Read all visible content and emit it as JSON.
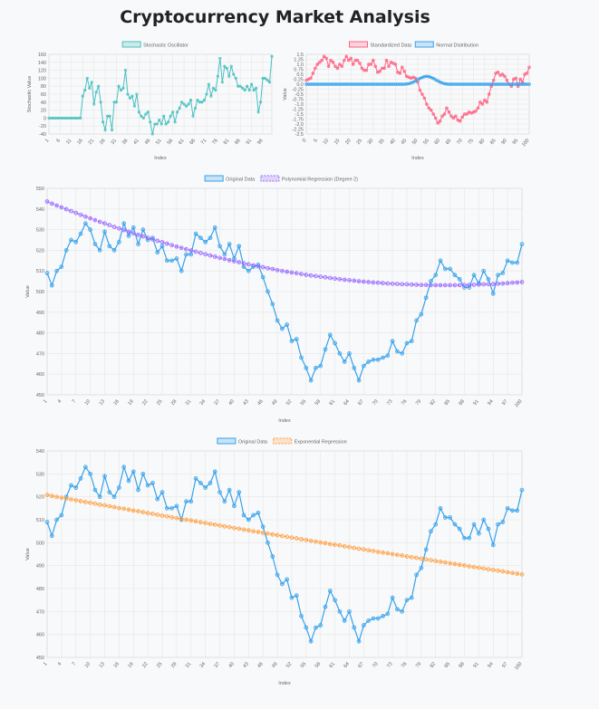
{
  "page": {
    "title": "Cryptocurrency Market Analysis"
  },
  "colors": {
    "teal": "#4bc0c0",
    "pink": "#ff6384",
    "blue": "#36a2eb",
    "purple": "#9966ff",
    "orange": "#ff9f40",
    "grid": "#e6e6e6"
  },
  "chart_data": [
    {
      "id": "stochastic",
      "type": "line",
      "title": "",
      "legend": "top-center",
      "xlabel": "Index",
      "ylabel": "Stochastic Value",
      "x_start": 1,
      "x_tick_step": 5,
      "ylim": [
        -40,
        160
      ],
      "y_step": 20,
      "series": [
        {
          "name": "Stochastic Oscillator",
          "color": "#4bc0c0",
          "values": [
            0,
            0,
            0,
            0,
            0,
            0,
            0,
            0,
            0,
            0,
            0,
            0,
            0,
            0,
            0,
            55,
            70,
            100,
            75,
            90,
            35,
            65,
            80,
            40,
            -10,
            -30,
            5,
            5,
            -30,
            40,
            40,
            80,
            70,
            75,
            120,
            60,
            50,
            55,
            30,
            60,
            15,
            5,
            0,
            10,
            15,
            -10,
            -40,
            -15,
            -15,
            -5,
            -15,
            5,
            -15,
            -10,
            5,
            15,
            -10,
            15,
            25,
            40,
            35,
            30,
            35,
            45,
            5,
            25,
            45,
            40,
            40,
            45,
            60,
            85,
            55,
            75,
            70,
            105,
            150,
            90,
            130,
            125,
            105,
            130,
            110,
            100,
            80,
            80,
            75,
            70,
            80,
            70,
            85,
            70,
            75,
            15,
            40,
            100,
            100,
            95,
            90,
            155
          ]
        }
      ]
    },
    {
      "id": "standardized",
      "type": "line",
      "title": "",
      "legend": "top-center",
      "xlabel": "Index",
      "ylabel": "Value",
      "x_start": 0,
      "x_tick_step": 5,
      "ylim": [
        -2.5,
        1.5
      ],
      "y_step": 0.25,
      "series": [
        {
          "name": "Standardized Data",
          "color": "#ff6384",
          "values": [
            0.2,
            0.25,
            0.3,
            0.55,
            0.8,
            1.0,
            1.1,
            1.2,
            1.4,
            1.3,
            0.9,
            1.2,
            1.1,
            0.9,
            0.8,
            1.0,
            0.9,
            1.2,
            1.4,
            1.2,
            1.3,
            1.0,
            1.2,
            1.2,
            1.05,
            0.8,
            0.7,
            0.7,
            1.0,
            1.0,
            1.2,
            0.9,
            0.6,
            0.65,
            0.8,
            0.8,
            1.2,
            0.9,
            1.1,
            1.05,
            1.0,
            0.6,
            0.55,
            0.85,
            0.65,
            0.4,
            0.35,
            0.3,
            0.35,
            0.3,
            0.1,
            -0.3,
            -0.5,
            -0.7,
            -1.0,
            -1.2,
            -1.3,
            -1.5,
            -1.7,
            -1.95,
            -1.85,
            -1.6,
            -1.5,
            -1.2,
            -1.4,
            -1.6,
            -1.7,
            -1.6,
            -1.8,
            -1.85,
            -1.65,
            -1.5,
            -1.5,
            -1.4,
            -1.45,
            -1.4,
            -1.35,
            -1.2,
            -0.9,
            -1.0,
            -0.8,
            -0.9,
            -0.5,
            -0.1,
            0.2,
            0.55,
            0.6,
            0.45,
            0.5,
            0.4,
            0.2,
            0.0,
            -0.1,
            0.25,
            0.3,
            -0.1,
            0.25,
            0.1,
            0.5,
            0.55,
            0.85
          ]
        },
        {
          "name": "Normal Distribution",
          "color": "#36a2eb",
          "values": [
            0,
            0,
            0,
            0,
            0,
            0,
            0,
            0,
            0,
            0,
            0,
            0,
            0,
            0,
            0,
            0,
            0,
            0,
            0,
            0,
            0,
            0,
            0,
            0,
            0,
            0,
            0,
            0,
            0,
            0,
            0,
            0,
            0,
            0,
            0,
            0,
            0,
            0,
            0,
            0,
            0,
            0,
            0,
            0,
            0,
            0.01,
            0.03,
            0.06,
            0.11,
            0.17,
            0.23,
            0.29,
            0.34,
            0.38,
            0.4,
            0.38,
            0.34,
            0.29,
            0.23,
            0.17,
            0.11,
            0.06,
            0.03,
            0.01,
            0,
            0,
            0,
            0,
            0,
            0,
            0,
            0,
            0,
            0,
            0,
            0,
            0,
            0,
            0,
            0,
            0,
            0,
            0,
            0,
            0,
            0,
            0,
            0,
            0,
            0,
            0,
            0,
            0,
            0,
            0,
            0,
            0,
            0,
            0,
            0,
            0
          ]
        }
      ]
    },
    {
      "id": "poly",
      "type": "line",
      "title": "",
      "legend": "top-center",
      "xlabel": "Index",
      "ylabel": "Value",
      "x_start": 1,
      "x_tick_step": 3,
      "x_tick_last": true,
      "ylim": [
        450,
        550
      ],
      "y_step": 10,
      "series": [
        {
          "name": "Original Data",
          "color": "#36a2eb",
          "values": [
            509,
            503,
            510,
            512,
            520,
            525,
            524,
            528,
            533,
            530,
            523,
            520,
            529,
            522,
            520,
            524,
            533,
            527,
            531,
            523,
            530,
            525,
            526,
            519,
            522,
            515,
            515,
            516,
            510,
            518,
            518,
            528,
            526,
            524,
            526,
            531,
            522,
            518,
            523,
            516,
            522,
            512,
            510,
            512,
            513,
            507,
            500,
            494,
            486,
            482,
            484,
            476,
            477,
            468,
            463,
            457,
            463,
            464,
            472,
            479,
            475,
            470,
            466,
            470,
            463,
            457,
            464,
            466,
            467,
            467,
            468,
            469,
            476,
            471,
            470,
            475,
            476,
            486,
            489,
            497,
            505,
            508,
            515,
            511,
            511,
            508,
            506,
            502,
            502,
            508,
            504,
            510,
            506,
            499,
            508,
            509,
            515,
            514,
            514,
            523
          ]
        },
        {
          "name": "Polynomial Regression (Degree 2)",
          "color": "#9966ff",
          "dashed": true,
          "values": [
            543.6,
            542.6,
            541.7,
            540.8,
            539.9,
            539.0,
            538.1,
            537.2,
            536.3,
            535.5,
            534.6,
            533.8,
            533.0,
            532.2,
            531.3,
            530.6,
            529.8,
            529.0,
            528.2,
            527.5,
            526.7,
            526.0,
            525.3,
            524.6,
            523.9,
            523.2,
            522.5,
            521.8,
            521.2,
            520.5,
            519.9,
            519.3,
            518.7,
            518.1,
            517.5,
            516.9,
            516.3,
            515.8,
            515.2,
            514.7,
            514.2,
            513.7,
            513.2,
            512.7,
            512.2,
            511.8,
            511.3,
            510.9,
            510.4,
            510.0,
            509.6,
            509.2,
            508.9,
            508.5,
            508.1,
            507.8,
            507.5,
            507.2,
            506.9,
            506.6,
            506.3,
            506.0,
            505.7,
            505.5,
            505.3,
            505.0,
            504.8,
            504.6,
            504.4,
            504.3,
            504.1,
            503.9,
            503.8,
            503.7,
            503.6,
            503.5,
            503.4,
            503.3,
            503.2,
            503.2,
            503.1,
            503.1,
            503.1,
            503.1,
            503.1,
            503.1,
            503.1,
            503.2,
            503.2,
            503.3,
            503.4,
            503.5,
            503.6,
            503.7,
            503.8,
            503.9,
            504.1,
            504.3,
            504.4,
            504.6
          ]
        }
      ]
    },
    {
      "id": "exp",
      "type": "line",
      "title": "",
      "legend": "top-center",
      "xlabel": "Index",
      "ylabel": "Value",
      "x_start": 1,
      "x_tick_step": 3,
      "x_tick_last": true,
      "ylim": [
        450,
        540
      ],
      "y_step": 10,
      "series": [
        {
          "name": "Original Data",
          "color": "#36a2eb",
          "values": [
            509,
            503,
            510,
            512,
            520,
            525,
            524,
            528,
            533,
            530,
            523,
            520,
            529,
            522,
            520,
            524,
            533,
            527,
            531,
            523,
            530,
            525,
            526,
            519,
            522,
            515,
            515,
            516,
            510,
            518,
            518,
            528,
            526,
            524,
            526,
            531,
            522,
            518,
            523,
            516,
            522,
            512,
            510,
            512,
            513,
            507,
            500,
            494,
            486,
            482,
            484,
            476,
            477,
            468,
            463,
            457,
            463,
            464,
            472,
            479,
            475,
            470,
            466,
            470,
            463,
            457,
            464,
            466,
            467,
            467,
            468,
            469,
            476,
            471,
            470,
            475,
            476,
            486,
            489,
            497,
            505,
            508,
            515,
            511,
            511,
            508,
            506,
            502,
            502,
            508,
            504,
            510,
            506,
            499,
            508,
            509,
            515,
            514,
            514,
            523
          ]
        },
        {
          "name": "Exponential Regression",
          "color": "#ff9f40",
          "dashed": true,
          "values": [
            520.8,
            520.4,
            520.0,
            519.6,
            519.2,
            518.9,
            518.5,
            518.1,
            517.7,
            517.4,
            517.0,
            516.6,
            516.3,
            515.9,
            515.5,
            515.1,
            514.8,
            514.4,
            514.0,
            513.7,
            513.3,
            512.9,
            512.6,
            512.2,
            511.8,
            511.5,
            511.1,
            510.7,
            510.4,
            510.0,
            509.7,
            509.3,
            508.9,
            508.6,
            508.2,
            507.9,
            507.5,
            507.1,
            506.8,
            506.4,
            506.1,
            505.7,
            505.4,
            505.0,
            504.7,
            504.3,
            504.0,
            503.6,
            503.3,
            502.9,
            502.6,
            502.2,
            501.9,
            501.5,
            501.2,
            500.8,
            500.5,
            500.1,
            499.8,
            499.4,
            499.1,
            498.8,
            498.4,
            498.1,
            497.7,
            497.4,
            497.1,
            496.7,
            496.4,
            496.0,
            495.7,
            495.4,
            495.0,
            494.7,
            494.4,
            494.0,
            493.7,
            493.4,
            493.0,
            492.7,
            492.4,
            492.0,
            491.7,
            491.4,
            491.0,
            490.7,
            490.4,
            490.1,
            489.7,
            489.4,
            489.1,
            488.8,
            488.4,
            488.1,
            487.8,
            487.5,
            487.1,
            486.8,
            486.5,
            486.2
          ]
        }
      ]
    }
  ]
}
